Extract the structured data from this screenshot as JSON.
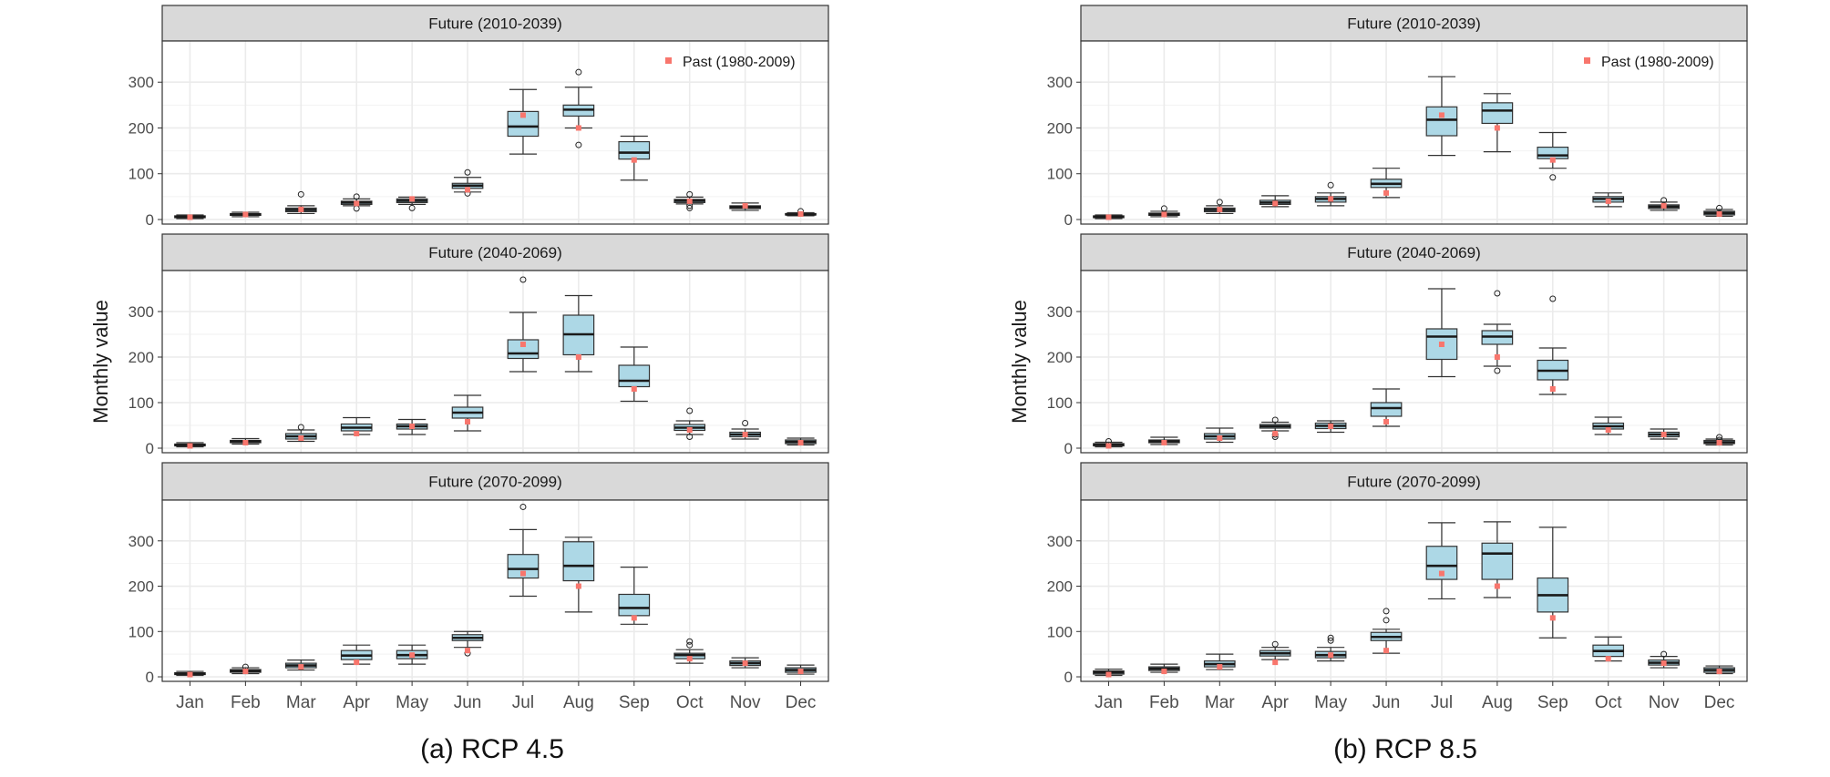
{
  "months": [
    "Jan",
    "Feb",
    "Mar",
    "Apr",
    "May",
    "Jun",
    "Jul",
    "Aug",
    "Sep",
    "Oct",
    "Nov",
    "Dec"
  ],
  "y_ticks": [
    0,
    100,
    200,
    300
  ],
  "ylabel": "Monthly value",
  "legend_label": "Past (1980-2009)",
  "colors": {
    "box_fill": "#add8e6",
    "past_marker": "#f8766d",
    "strip_bg": "#d9d9d9",
    "grid": "#ebebeb"
  },
  "captions": {
    "a": "(a) RCP 4.5",
    "b": "(b) RCP 8.5"
  },
  "chart_data": [
    {
      "type": "box",
      "scenario": "RCP 4.5",
      "ylim": [
        -10,
        390
      ],
      "panels": [
        {
          "title": "Future (2010-2039)",
          "boxes": [
            {
              "q1": 4,
              "median": 6,
              "q3": 8,
              "lw": 2,
              "uw": 10,
              "outliers": []
            },
            {
              "q1": 9,
              "median": 11,
              "q3": 13,
              "lw": 6,
              "uw": 16,
              "outliers": []
            },
            {
              "q1": 17,
              "median": 21,
              "q3": 25,
              "lw": 13,
              "uw": 30,
              "outliers": [
                55
              ]
            },
            {
              "q1": 33,
              "median": 37,
              "q3": 40,
              "lw": 30,
              "uw": 45,
              "outliers": [
                50,
                24
              ]
            },
            {
              "q1": 37,
              "median": 41,
              "q3": 45,
              "lw": 33,
              "uw": 49,
              "outliers": [
                25
              ]
            },
            {
              "q1": 68,
              "median": 74,
              "q3": 79,
              "lw": 60,
              "uw": 92,
              "outliers": [
                103,
                57
              ]
            },
            {
              "q1": 182,
              "median": 203,
              "q3": 236,
              "lw": 143,
              "uw": 284,
              "outliers": []
            },
            {
              "q1": 226,
              "median": 240,
              "q3": 250,
              "lw": 200,
              "uw": 289,
              "outliers": [
                322,
                163
              ]
            },
            {
              "q1": 132,
              "median": 146,
              "q3": 170,
              "lw": 86,
              "uw": 182,
              "outliers": []
            },
            {
              "q1": 37,
              "median": 41,
              "q3": 44,
              "lw": 34,
              "uw": 49,
              "outliers": [
                55,
                25,
                30
              ]
            },
            {
              "q1": 24,
              "median": 27,
              "q3": 30,
              "lw": 20,
              "uw": 36,
              "outliers": []
            },
            {
              "q1": 10,
              "median": 11,
              "q3": 13,
              "lw": 8,
              "uw": 15,
              "outliers": [
                18
              ]
            }
          ],
          "past": [
            5,
            11,
            22,
            35,
            45,
            65,
            228,
            200,
            130,
            40,
            30,
            12
          ],
          "show_legend": true
        },
        {
          "title": "Future (2040-2069)",
          "boxes": [
            {
              "q1": 5,
              "median": 7,
              "q3": 9,
              "lw": 3,
              "uw": 12,
              "outliers": []
            },
            {
              "q1": 12,
              "median": 15,
              "q3": 17,
              "lw": 9,
              "uw": 21,
              "outliers": []
            },
            {
              "q1": 20,
              "median": 26,
              "q3": 32,
              "lw": 15,
              "uw": 40,
              "outliers": [
                46
              ]
            },
            {
              "q1": 38,
              "median": 45,
              "q3": 53,
              "lw": 30,
              "uw": 67,
              "outliers": []
            },
            {
              "q1": 42,
              "median": 48,
              "q3": 53,
              "lw": 30,
              "uw": 63,
              "outliers": []
            },
            {
              "q1": 66,
              "median": 78,
              "q3": 90,
              "lw": 38,
              "uw": 116,
              "outliers": []
            },
            {
              "q1": 197,
              "median": 208,
              "q3": 238,
              "lw": 168,
              "uw": 298,
              "outliers": [
                370
              ]
            },
            {
              "q1": 205,
              "median": 250,
              "q3": 292,
              "lw": 168,
              "uw": 335,
              "outliers": []
            },
            {
              "q1": 135,
              "median": 148,
              "q3": 182,
              "lw": 103,
              "uw": 222,
              "outliers": []
            },
            {
              "q1": 39,
              "median": 45,
              "q3": 52,
              "lw": 30,
              "uw": 60,
              "outliers": [
                82,
                25
              ]
            },
            {
              "q1": 25,
              "median": 30,
              "q3": 35,
              "lw": 20,
              "uw": 42,
              "outliers": [
                55
              ]
            },
            {
              "q1": 10,
              "median": 14,
              "q3": 18,
              "lw": 7,
              "uw": 22,
              "outliers": []
            }
          ],
          "past": [
            5,
            12,
            22,
            32,
            48,
            58,
            228,
            200,
            130,
            40,
            30,
            12
          ],
          "show_legend": false
        },
        {
          "title": "Future (2070-2099)",
          "boxes": [
            {
              "q1": 5,
              "median": 7,
              "q3": 9,
              "lw": 3,
              "uw": 12,
              "outliers": []
            },
            {
              "q1": 10,
              "median": 13,
              "q3": 16,
              "lw": 7,
              "uw": 20,
              "outliers": [
                22
              ]
            },
            {
              "q1": 20,
              "median": 25,
              "q3": 30,
              "lw": 15,
              "uw": 37,
              "outliers": []
            },
            {
              "q1": 38,
              "median": 47,
              "q3": 58,
              "lw": 28,
              "uw": 70,
              "outliers": []
            },
            {
              "q1": 40,
              "median": 48,
              "q3": 58,
              "lw": 28,
              "uw": 70,
              "outliers": []
            },
            {
              "q1": 80,
              "median": 86,
              "q3": 93,
              "lw": 65,
              "uw": 100,
              "outliers": [
                52
              ]
            },
            {
              "q1": 218,
              "median": 238,
              "q3": 270,
              "lw": 178,
              "uw": 325,
              "outliers": [
                375
              ]
            },
            {
              "q1": 212,
              "median": 245,
              "q3": 298,
              "lw": 143,
              "uw": 308,
              "outliers": []
            },
            {
              "q1": 135,
              "median": 152,
              "q3": 182,
              "lw": 116,
              "uw": 242,
              "outliers": []
            },
            {
              "q1": 40,
              "median": 48,
              "q3": 52,
              "lw": 30,
              "uw": 60,
              "outliers": [
                78,
                70
              ]
            },
            {
              "q1": 25,
              "median": 30,
              "q3": 35,
              "lw": 20,
              "uw": 42,
              "outliers": []
            },
            {
              "q1": 10,
              "median": 15,
              "q3": 20,
              "lw": 6,
              "uw": 26,
              "outliers": []
            }
          ],
          "past": [
            5,
            12,
            22,
            32,
            48,
            58,
            228,
            200,
            130,
            40,
            30,
            12
          ],
          "show_legend": false
        }
      ]
    },
    {
      "type": "box",
      "scenario": "RCP 8.5",
      "ylim": [
        -10,
        390
      ],
      "panels": [
        {
          "title": "Future (2010-2039)",
          "boxes": [
            {
              "q1": 4,
              "median": 6,
              "q3": 8,
              "lw": 2,
              "uw": 10,
              "outliers": []
            },
            {
              "q1": 9,
              "median": 11,
              "q3": 14,
              "lw": 6,
              "uw": 18,
              "outliers": [
                24
              ]
            },
            {
              "q1": 17,
              "median": 21,
              "q3": 25,
              "lw": 13,
              "uw": 30,
              "outliers": [
                38
              ]
            },
            {
              "q1": 33,
              "median": 37,
              "q3": 42,
              "lw": 28,
              "uw": 52,
              "outliers": []
            },
            {
              "q1": 38,
              "median": 45,
              "q3": 50,
              "lw": 30,
              "uw": 58,
              "outliers": [
                75
              ]
            },
            {
              "q1": 70,
              "median": 78,
              "q3": 88,
              "lw": 48,
              "uw": 112,
              "outliers": []
            },
            {
              "q1": 183,
              "median": 218,
              "q3": 246,
              "lw": 140,
              "uw": 312,
              "outliers": []
            },
            {
              "q1": 210,
              "median": 238,
              "q3": 255,
              "lw": 148,
              "uw": 275,
              "outliers": []
            },
            {
              "q1": 133,
              "median": 140,
              "q3": 158,
              "lw": 112,
              "uw": 190,
              "outliers": [
                92
              ]
            },
            {
              "q1": 38,
              "median": 45,
              "q3": 50,
              "lw": 28,
              "uw": 58,
              "outliers": []
            },
            {
              "q1": 24,
              "median": 28,
              "q3": 32,
              "lw": 20,
              "uw": 38,
              "outliers": [
                42
              ]
            },
            {
              "q1": 10,
              "median": 14,
              "q3": 18,
              "lw": 7,
              "uw": 22,
              "outliers": [
                25
              ]
            }
          ],
          "past": [
            5,
            11,
            22,
            35,
            45,
            58,
            228,
            200,
            130,
            40,
            30,
            12
          ],
          "show_legend": true
        },
        {
          "title": "Future (2040-2069)",
          "boxes": [
            {
              "q1": 5,
              "median": 8,
              "q3": 10,
              "lw": 3,
              "uw": 13,
              "outliers": [
                15
              ]
            },
            {
              "q1": 12,
              "median": 15,
              "q3": 18,
              "lw": 8,
              "uw": 24,
              "outliers": []
            },
            {
              "q1": 20,
              "median": 26,
              "q3": 32,
              "lw": 13,
              "uw": 44,
              "outliers": []
            },
            {
              "q1": 44,
              "median": 48,
              "q3": 52,
              "lw": 38,
              "uw": 57,
              "outliers": [
                62,
                30,
                25
              ]
            },
            {
              "q1": 43,
              "median": 49,
              "q3": 55,
              "lw": 35,
              "uw": 60,
              "outliers": []
            },
            {
              "q1": 70,
              "median": 88,
              "q3": 100,
              "lw": 48,
              "uw": 130,
              "outliers": []
            },
            {
              "q1": 195,
              "median": 245,
              "q3": 262,
              "lw": 157,
              "uw": 350,
              "outliers": []
            },
            {
              "q1": 228,
              "median": 245,
              "q3": 258,
              "lw": 180,
              "uw": 272,
              "outliers": [
                340,
                170
              ]
            },
            {
              "q1": 150,
              "median": 170,
              "q3": 193,
              "lw": 118,
              "uw": 220,
              "outliers": [
                328
              ]
            },
            {
              "q1": 42,
              "median": 48,
              "q3": 55,
              "lw": 30,
              "uw": 68,
              "outliers": []
            },
            {
              "q1": 25,
              "median": 30,
              "q3": 35,
              "lw": 20,
              "uw": 42,
              "outliers": []
            },
            {
              "q1": 10,
              "median": 13,
              "q3": 17,
              "lw": 7,
              "uw": 20,
              "outliers": [
                24,
                18
              ]
            }
          ],
          "past": [
            5,
            12,
            22,
            32,
            48,
            58,
            228,
            200,
            130,
            40,
            30,
            12
          ],
          "show_legend": false
        },
        {
          "title": "Future (2070-2099)",
          "boxes": [
            {
              "q1": 6,
              "median": 10,
              "q3": 13,
              "lw": 3,
              "uw": 17,
              "outliers": []
            },
            {
              "q1": 14,
              "median": 18,
              "q3": 22,
              "lw": 10,
              "uw": 28,
              "outliers": []
            },
            {
              "q1": 22,
              "median": 28,
              "q3": 35,
              "lw": 16,
              "uw": 50,
              "outliers": []
            },
            {
              "q1": 46,
              "median": 52,
              "q3": 58,
              "lw": 38,
              "uw": 65,
              "outliers": [
                72
              ]
            },
            {
              "q1": 42,
              "median": 48,
              "q3": 56,
              "lw": 35,
              "uw": 65,
              "outliers": [
                80,
                86
              ]
            },
            {
              "q1": 80,
              "median": 88,
              "q3": 98,
              "lw": 52,
              "uw": 105,
              "outliers": [
                145,
                125
              ]
            },
            {
              "q1": 215,
              "median": 245,
              "q3": 288,
              "lw": 172,
              "uw": 340,
              "outliers": []
            },
            {
              "q1": 215,
              "median": 272,
              "q3": 295,
              "lw": 175,
              "uw": 342,
              "outliers": []
            },
            {
              "q1": 143,
              "median": 180,
              "q3": 218,
              "lw": 86,
              "uw": 330,
              "outliers": []
            },
            {
              "q1": 45,
              "median": 57,
              "q3": 70,
              "lw": 35,
              "uw": 88,
              "outliers": []
            },
            {
              "q1": 26,
              "median": 31,
              "q3": 37,
              "lw": 20,
              "uw": 45,
              "outliers": [
                50
              ]
            },
            {
              "q1": 10,
              "median": 15,
              "q3": 20,
              "lw": 7,
              "uw": 24,
              "outliers": []
            }
          ],
          "past": [
            5,
            12,
            22,
            32,
            48,
            58,
            228,
            200,
            130,
            40,
            30,
            12
          ],
          "show_legend": false
        }
      ]
    }
  ]
}
